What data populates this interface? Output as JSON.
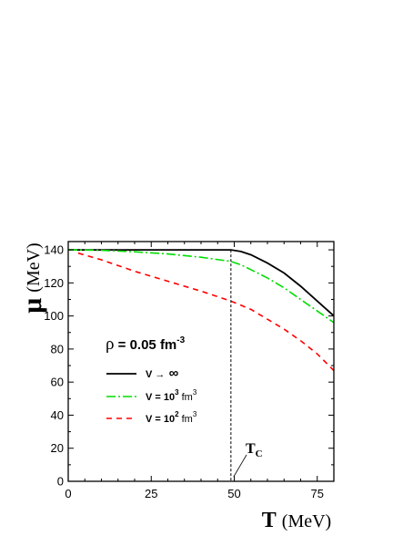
{
  "chart_data": {
    "type": "line",
    "xlabel": "T (MeV)",
    "xlabel_symbol": "T",
    "xlabel_unit": "(MeV)",
    "ylabel": "μ (MeV)",
    "ylabel_symbol": "μ",
    "ylabel_unit": "(MeV)",
    "xlim": [
      0,
      80
    ],
    "ylim": [
      0,
      145
    ],
    "xticks": [
      0,
      25,
      50,
      75
    ],
    "yticks": [
      0,
      20,
      40,
      60,
      80,
      100,
      120,
      140
    ],
    "grid": false,
    "annotation": {
      "rho_symbol": "ρ",
      "rho_text": " = 0.05 fm",
      "rho_sup": "-3",
      "tc_main": "T",
      "tc_sub": "C",
      "tc_x": 49
    },
    "series": [
      {
        "name": "V → ∞",
        "legend_parts": [
          "V ",
          "→",
          " ∞"
        ],
        "color": "#000000",
        "dash": "",
        "points": [
          [
            0,
            140
          ],
          [
            10,
            140
          ],
          [
            20,
            140
          ],
          [
            30,
            140
          ],
          [
            40,
            140
          ],
          [
            49,
            140
          ],
          [
            52,
            139
          ],
          [
            55,
            137
          ],
          [
            60,
            132
          ],
          [
            65,
            126
          ],
          [
            70,
            118
          ],
          [
            75,
            109
          ],
          [
            80,
            100
          ]
        ]
      },
      {
        "name": "V = 10^3 fm^3",
        "legend_parts": [
          "V = 10",
          "3",
          " fm",
          "3"
        ],
        "color": "#00dd00",
        "dash": "10,3,2,3",
        "points": [
          [
            0,
            140
          ],
          [
            10,
            139.7
          ],
          [
            20,
            138.8
          ],
          [
            30,
            137.5
          ],
          [
            40,
            135.5
          ],
          [
            49,
            133
          ],
          [
            52,
            131
          ],
          [
            55,
            128
          ],
          [
            60,
            123
          ],
          [
            65,
            117
          ],
          [
            70,
            110
          ],
          [
            75,
            103
          ],
          [
            80,
            96
          ]
        ]
      },
      {
        "name": "V = 10^2 fm^3",
        "legend_parts": [
          "V = 10",
          "2",
          " fm",
          "3"
        ],
        "color": "#ff0000",
        "dash": "6,5",
        "points": [
          [
            3,
            138
          ],
          [
            10,
            134
          ],
          [
            20,
            127
          ],
          [
            30,
            121
          ],
          [
            40,
            115
          ],
          [
            49,
            109
          ],
          [
            55,
            104
          ],
          [
            60,
            98
          ],
          [
            65,
            92
          ],
          [
            70,
            85
          ],
          [
            75,
            77
          ],
          [
            80,
            67
          ]
        ]
      }
    ]
  }
}
